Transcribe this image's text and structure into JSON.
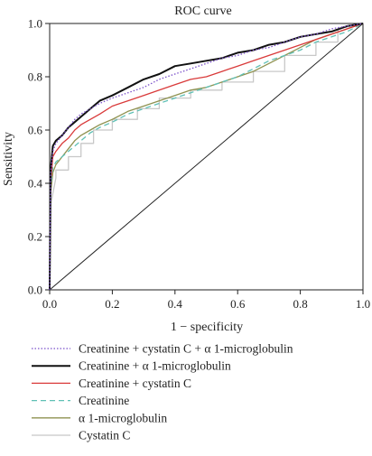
{
  "chart_data": {
    "type": "line",
    "title": "ROC curve",
    "xlabel": "1 − specificity",
    "ylabel": "Sensitivity",
    "xlim": [
      0.0,
      1.0
    ],
    "ylim": [
      0.0,
      1.0
    ],
    "xticks": [
      "0.0",
      "0.2",
      "0.4",
      "0.6",
      "0.8",
      "1.0"
    ],
    "yticks": [
      "0.0",
      "0.2",
      "0.4",
      "0.6",
      "0.8",
      "1.0"
    ],
    "grid": false,
    "legend_position": "bottom",
    "reference_line": {
      "x": [
        0,
        1
      ],
      "y": [
        0,
        1
      ],
      "color": "#222222"
    },
    "series": [
      {
        "name": "Creatinine + cystatin C + α 1-microglobulin",
        "color": "#7a4fc9",
        "dash": "dotted",
        "x": [
          0,
          0.003,
          0.01,
          0.02,
          0.04,
          0.06,
          0.08,
          0.1,
          0.13,
          0.16,
          0.2,
          0.25,
          0.3,
          0.35,
          0.4,
          0.45,
          0.5,
          0.55,
          0.6,
          0.65,
          0.7,
          0.75,
          0.8,
          0.85,
          0.9,
          0.95,
          1.0
        ],
        "y": [
          0,
          0.44,
          0.52,
          0.55,
          0.58,
          0.61,
          0.64,
          0.66,
          0.68,
          0.7,
          0.72,
          0.74,
          0.76,
          0.79,
          0.81,
          0.83,
          0.85,
          0.87,
          0.88,
          0.9,
          0.91,
          0.93,
          0.95,
          0.96,
          0.98,
          0.99,
          1.0
        ]
      },
      {
        "name": "Creatinine + α 1-microglobulin",
        "color": "#111111",
        "dash": "solid",
        "x": [
          0,
          0.003,
          0.01,
          0.02,
          0.04,
          0.06,
          0.08,
          0.1,
          0.13,
          0.16,
          0.2,
          0.25,
          0.3,
          0.35,
          0.4,
          0.45,
          0.5,
          0.55,
          0.6,
          0.65,
          0.7,
          0.75,
          0.8,
          0.85,
          0.9,
          0.95,
          1.0
        ],
        "y": [
          0,
          0.45,
          0.54,
          0.56,
          0.58,
          0.61,
          0.63,
          0.65,
          0.68,
          0.71,
          0.73,
          0.76,
          0.79,
          0.81,
          0.84,
          0.85,
          0.86,
          0.87,
          0.89,
          0.9,
          0.92,
          0.93,
          0.95,
          0.96,
          0.97,
          0.99,
          1.0
        ]
      },
      {
        "name": "Creatinine + cystatin C",
        "color": "#d93a3a",
        "dash": "solid",
        "x": [
          0,
          0.003,
          0.01,
          0.02,
          0.04,
          0.06,
          0.08,
          0.1,
          0.13,
          0.16,
          0.2,
          0.25,
          0.3,
          0.35,
          0.4,
          0.45,
          0.5,
          0.55,
          0.6,
          0.65,
          0.7,
          0.75,
          0.8,
          0.85,
          0.9,
          0.95,
          1.0
        ],
        "y": [
          0,
          0.4,
          0.5,
          0.52,
          0.55,
          0.57,
          0.6,
          0.62,
          0.64,
          0.66,
          0.69,
          0.71,
          0.73,
          0.75,
          0.77,
          0.79,
          0.8,
          0.82,
          0.84,
          0.86,
          0.88,
          0.9,
          0.92,
          0.94,
          0.96,
          0.98,
          1.0
        ]
      },
      {
        "name": "Creatinine",
        "color": "#5fc0b5",
        "dash": "dashed",
        "x": [
          0,
          0.003,
          0.01,
          0.02,
          0.04,
          0.06,
          0.08,
          0.1,
          0.13,
          0.16,
          0.2,
          0.25,
          0.3,
          0.35,
          0.4,
          0.45,
          0.5,
          0.55,
          0.6,
          0.65,
          0.7,
          0.75,
          0.8,
          0.85,
          0.9,
          0.95,
          1.0
        ],
        "y": [
          0,
          0.38,
          0.46,
          0.48,
          0.5,
          0.52,
          0.54,
          0.56,
          0.59,
          0.61,
          0.63,
          0.66,
          0.68,
          0.7,
          0.72,
          0.74,
          0.76,
          0.78,
          0.8,
          0.83,
          0.86,
          0.88,
          0.9,
          0.93,
          0.95,
          0.97,
          1.0
        ]
      },
      {
        "name": "α 1-microglobulin",
        "color": "#8f9250",
        "dash": "solid",
        "x": [
          0,
          0.003,
          0.01,
          0.02,
          0.04,
          0.06,
          0.08,
          0.1,
          0.13,
          0.16,
          0.2,
          0.25,
          0.3,
          0.35,
          0.4,
          0.45,
          0.5,
          0.55,
          0.6,
          0.65,
          0.7,
          0.75,
          0.8,
          0.85,
          0.9,
          0.95,
          1.0
        ],
        "y": [
          0,
          0.36,
          0.44,
          0.47,
          0.5,
          0.53,
          0.56,
          0.58,
          0.6,
          0.62,
          0.64,
          0.67,
          0.69,
          0.71,
          0.73,
          0.75,
          0.76,
          0.78,
          0.8,
          0.82,
          0.85,
          0.88,
          0.91,
          0.94,
          0.96,
          0.98,
          1.0
        ]
      },
      {
        "name": "Cystatin C",
        "color": "#c8c8c8",
        "dash": "solid",
        "x": [
          0,
          0.005,
          0.02,
          0.02,
          0.06,
          0.06,
          0.1,
          0.1,
          0.14,
          0.14,
          0.2,
          0.2,
          0.28,
          0.28,
          0.35,
          0.35,
          0.45,
          0.45,
          0.55,
          0.55,
          0.65,
          0.65,
          0.75,
          0.75,
          0.85,
          0.85,
          0.92,
          0.92,
          1.0
        ],
        "y": [
          0,
          0.33,
          0.42,
          0.45,
          0.45,
          0.5,
          0.5,
          0.55,
          0.55,
          0.6,
          0.6,
          0.64,
          0.64,
          0.68,
          0.68,
          0.72,
          0.72,
          0.75,
          0.75,
          0.78,
          0.78,
          0.82,
          0.82,
          0.88,
          0.88,
          0.93,
          0.93,
          0.98,
          1.0
        ]
      }
    ]
  }
}
